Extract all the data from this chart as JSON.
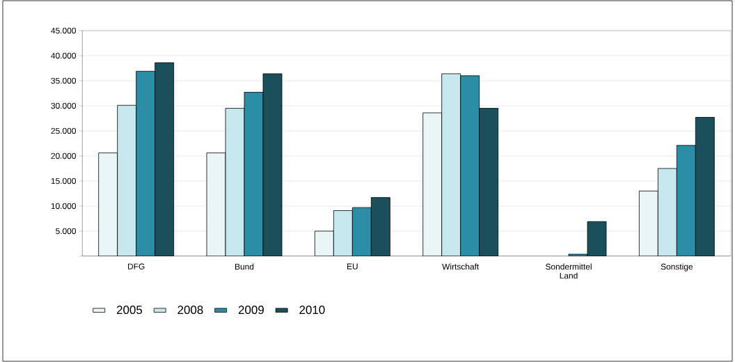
{
  "chart_data": {
    "type": "bar",
    "categories": [
      "DFG",
      "Bund",
      "EU",
      "Wirtschaft",
      "Sondermittel Land",
      "Sonstige"
    ],
    "series": [
      {
        "name": "2005",
        "color": "#eaf5f7",
        "values": [
          20600,
          20600,
          5000,
          28600,
          null,
          13000
        ]
      },
      {
        "name": "2008",
        "color": "#c6e7ee",
        "values": [
          30100,
          29500,
          9100,
          36400,
          null,
          17500
        ]
      },
      {
        "name": "2009",
        "color": "#2c8ea6",
        "values": [
          36900,
          32700,
          9700,
          36000,
          400,
          22100
        ]
      },
      {
        "name": "2010",
        "color": "#1a4f5c",
        "values": [
          38600,
          36400,
          11700,
          29500,
          6900,
          27700
        ]
      }
    ],
    "ylim": [
      0,
      45000
    ],
    "yticks": [
      {
        "value": 0,
        "label": null
      },
      {
        "value": 5000,
        "label": "5.000"
      },
      {
        "value": 10000,
        "label": "10.000"
      },
      {
        "value": 15000,
        "label": "15.000"
      },
      {
        "value": 20000,
        "label": "20.000"
      },
      {
        "value": 25000,
        "label": "25.000"
      },
      {
        "value": 30000,
        "label": "30.000"
      },
      {
        "value": 35000,
        "label": "35.000"
      },
      {
        "value": 40000,
        "label": "40.000"
      },
      {
        "value": 45000,
        "label": "45.000"
      }
    ],
    "grid": "y",
    "legend": "bottom"
  }
}
